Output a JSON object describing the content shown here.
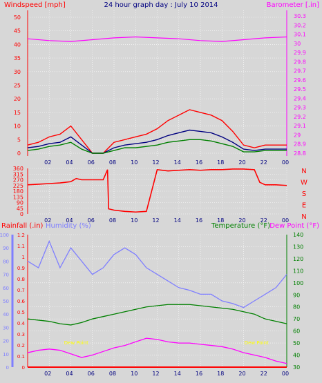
{
  "chart_data": [
    {
      "id": "wind-baro",
      "type": "line",
      "title": "24 hour graph day : July 10 2014",
      "left_axis_title": "Windspeed [mph]",
      "right_axis_title": "Barometer [.in]",
      "x_ticks": [
        "02",
        "04",
        "06",
        "08",
        "10",
        "12",
        "14",
        "16",
        "18",
        "20",
        "22",
        "00"
      ],
      "y_left_ticks": [
        0,
        5,
        10,
        15,
        20,
        25,
        30,
        35,
        40,
        45,
        50
      ],
      "y_left_range": [
        0,
        50
      ],
      "y_right_ticks": [
        "28.8",
        "28.9",
        "29",
        "29.1",
        "29.2",
        "29.3",
        "29.4",
        "29.5",
        "29.6",
        "29.7",
        "29.8",
        "29.9",
        "30",
        "30.1",
        "30.2",
        "30.3"
      ],
      "y_right_range": [
        28.8,
        30.3
      ],
      "series": [
        {
          "color": "#ff0000",
          "x": [
            0,
            1,
            2,
            3,
            4,
            5,
            6,
            7,
            8,
            9,
            10,
            11,
            12,
            13,
            14,
            15,
            16,
            17,
            18,
            19,
            20,
            21,
            22,
            23,
            24
          ],
          "y": [
            3,
            4,
            6,
            7,
            10,
            5,
            0,
            0,
            4,
            5,
            6,
            7,
            9,
            12,
            14,
            16,
            15,
            14,
            12,
            8,
            3,
            2,
            3,
            3,
            3
          ]
        },
        {
          "color": "#000080",
          "x": [
            0,
            1,
            2,
            3,
            4,
            5,
            6,
            7,
            8,
            9,
            10,
            11,
            12,
            13,
            14,
            15,
            16,
            17,
            18,
            19,
            20,
            21,
            22,
            23,
            24
          ],
          "y": [
            2,
            2.5,
            3.5,
            4,
            6,
            3,
            0,
            0,
            2,
            3,
            3.5,
            4,
            5,
            6.5,
            7.5,
            8.5,
            8,
            7.5,
            6,
            4,
            1.5,
            1,
            1.5,
            1.5,
            1.5
          ]
        },
        {
          "color": "#008000",
          "x": [
            0,
            1,
            2,
            3,
            4,
            5,
            6,
            7,
            8,
            9,
            10,
            11,
            12,
            13,
            14,
            15,
            16,
            17,
            18,
            19,
            20,
            21,
            22,
            23,
            24
          ],
          "y": [
            1,
            1.5,
            2.5,
            3,
            4,
            1.5,
            0,
            0,
            1,
            2,
            2,
            2.5,
            3,
            4,
            4.5,
            5,
            5,
            4.5,
            3.5,
            2.5,
            0.5,
            0.5,
            1,
            1,
            1
          ]
        },
        {
          "color": "#ff00ff",
          "x": [
            0,
            2,
            4,
            6,
            8,
            10,
            12,
            14,
            16,
            18,
            20,
            22,
            24
          ],
          "y": [
            30.05,
            30.03,
            30.02,
            30.04,
            30.06,
            30.07,
            30.06,
            30.05,
            30.03,
            30.02,
            30.04,
            30.06,
            30.07
          ]
        }
      ]
    },
    {
      "id": "wind-direction",
      "type": "line",
      "x_ticks": [
        "02",
        "04",
        "06",
        "08",
        "10",
        "12",
        "14",
        "16",
        "18",
        "20",
        "22",
        "00"
      ],
      "y_left_ticks": [
        0,
        45,
        90,
        135,
        180,
        225,
        270,
        315,
        360
      ],
      "y_left_range": [
        0,
        360
      ],
      "compass_labels": [
        "N",
        "W",
        "S",
        "E",
        "N"
      ],
      "series": [
        {
          "color": "#ff0000",
          "x": [
            0,
            1,
            2,
            3,
            4,
            4.5,
            5,
            6,
            7,
            7.4,
            7.5,
            8,
            9,
            10,
            11,
            12,
            13,
            14,
            15,
            16,
            17,
            18,
            19,
            20,
            21,
            21.5,
            22,
            23,
            24
          ],
          "y": [
            230,
            235,
            240,
            245,
            255,
            280,
            270,
            270,
            270,
            350,
            40,
            30,
            20,
            15,
            20,
            350,
            340,
            345,
            350,
            345,
            350,
            350,
            355,
            355,
            350,
            250,
            230,
            230,
            225
          ]
        }
      ]
    },
    {
      "id": "rain-humidity-temp",
      "type": "line",
      "left_axis_title_1": "Rainfall (.in)",
      "left_axis_title_2": "Humidity (%)",
      "right_axis_title_1": "Temperature (°F)",
      "right_axis_title_2": "Dew Point (°F)",
      "annotations": [
        "Dew Point",
        "Dew Point"
      ],
      "x_ticks": [
        "02",
        "04",
        "06",
        "08",
        "10",
        "12",
        "14",
        "16",
        "18",
        "20",
        "22",
        "00"
      ],
      "rain_ticks": [
        "0",
        "0.1",
        "0.2",
        "0.3",
        "0.4",
        "0.5",
        "0.6",
        "0.7",
        "0.8",
        "0.9",
        "1",
        "1.1",
        "1.2"
      ],
      "rain_range": [
        0,
        1.2
      ],
      "humidity_ticks": [
        0,
        10,
        20,
        30,
        40,
        50,
        60,
        70,
        80,
        90,
        100
      ],
      "humidity_range": [
        0,
        100
      ],
      "temp_ticks": [
        30,
        40,
        50,
        60,
        70,
        80,
        90,
        100,
        110,
        120,
        130,
        140
      ],
      "temp_range": [
        30,
        140
      ],
      "series": [
        {
          "name": "Humidity",
          "color": "#7f7fff",
          "x": [
            0,
            1,
            2,
            3,
            4,
            5,
            6,
            7,
            8,
            9,
            10,
            11,
            12,
            13,
            14,
            15,
            16,
            17,
            18,
            19,
            20,
            21,
            22,
            23,
            24
          ],
          "y": [
            80,
            75,
            95,
            75,
            90,
            80,
            70,
            75,
            85,
            90,
            85,
            75,
            70,
            65,
            60,
            58,
            55,
            55,
            50,
            48,
            45,
            50,
            55,
            60,
            70
          ]
        },
        {
          "name": "Temperature",
          "color": "#008000",
          "x": [
            0,
            1,
            2,
            3,
            4,
            5,
            6,
            7,
            8,
            9,
            10,
            11,
            12,
            13,
            14,
            15,
            16,
            17,
            18,
            19,
            20,
            21,
            22,
            23,
            24
          ],
          "y": [
            70,
            69,
            68,
            66,
            65,
            67,
            70,
            72,
            74,
            76,
            78,
            80,
            81,
            82,
            82,
            82,
            81,
            80,
            79,
            78,
            76,
            74,
            70,
            68,
            66
          ]
        },
        {
          "name": "Dew Point",
          "color": "#ff00ff",
          "x": [
            0,
            1,
            2,
            3,
            4,
            5,
            6,
            7,
            8,
            9,
            10,
            11,
            12,
            13,
            14,
            15,
            16,
            17,
            18,
            19,
            20,
            21,
            22,
            23,
            24
          ],
          "y": [
            42,
            44,
            45,
            44,
            41,
            38,
            40,
            43,
            46,
            48,
            51,
            54,
            53,
            51,
            50,
            50,
            49,
            48,
            47,
            45,
            42,
            40,
            38,
            35,
            33
          ]
        },
        {
          "name": "Rainfall",
          "color": "#ff0000",
          "x": [
            0,
            24
          ],
          "y": [
            0,
            0
          ]
        }
      ]
    }
  ]
}
